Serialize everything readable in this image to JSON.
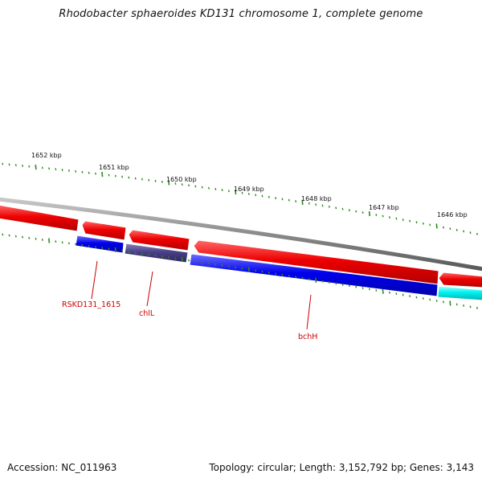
{
  "title": "Rhodobacter sphaeroides KD131 chromosome 1, complete genome",
  "footer": {
    "accession": "Accession: NC_011963",
    "summary": "Topology: circular; Length: 3,152,792 bp; Genes: 3,143"
  },
  "colors": {
    "backbone": "#8a8a8a",
    "forward_gene": "#ee0000",
    "reverse_gene": "#0000ee",
    "reverse_gene_alt": "#4a3f85",
    "reverse_gene_other": "#00f0f0",
    "tick": "#2a8a1a",
    "gene_label": "#cc0000"
  },
  "ruler": {
    "unit": "kbp",
    "labels": [
      "1652 kbp",
      "1651 kbp",
      "1650 kbp",
      "1649 kbp",
      "1648 kbp",
      "1647 kbp",
      "1646 kbp"
    ]
  },
  "gene_labels": [
    "RSKD131_1615",
    "chlL",
    "bchH"
  ],
  "features": {
    "forward_strand": [
      {
        "kind": "CDS",
        "color": "forward_gene"
      },
      {
        "kind": "CDS",
        "color": "forward_gene"
      },
      {
        "kind": "CDS",
        "color": "forward_gene"
      },
      {
        "kind": "CDS",
        "color": "forward_gene"
      },
      {
        "kind": "CDS",
        "color": "forward_gene"
      }
    ],
    "reverse_strand": [
      {
        "kind": "CDS",
        "color": "reverse_gene"
      },
      {
        "kind": "CDS",
        "color": "reverse_gene_alt"
      },
      {
        "kind": "CDS",
        "color": "reverse_gene"
      },
      {
        "kind": "CDS",
        "color": "reverse_gene_other"
      }
    ]
  }
}
